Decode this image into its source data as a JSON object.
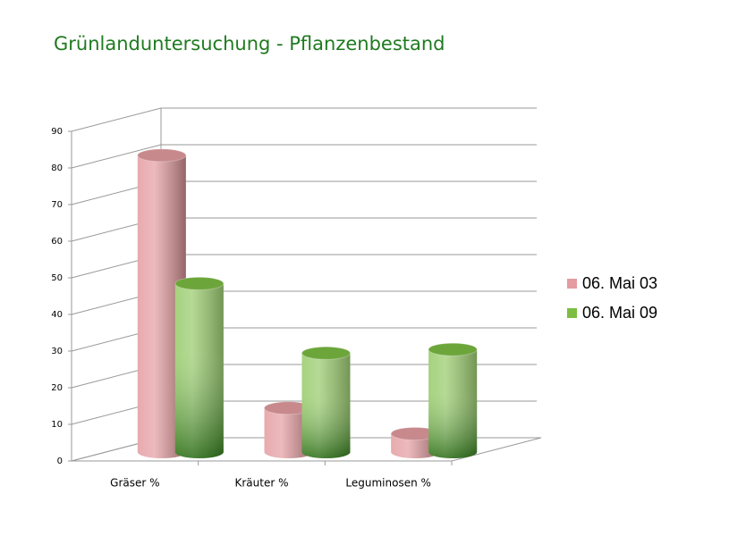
{
  "chart_data": {
    "type": "bar3d",
    "title": "Grünlanduntersuchung - Pflanzenbestand",
    "categories": [
      "Gräser %",
      "Kräuter %",
      "Leguminosen %"
    ],
    "series": [
      {
        "name": "06. Mai 03",
        "color": "#e49ca0",
        "values": [
          81,
          12,
          5
        ]
      },
      {
        "name": "06. Mai 09",
        "color": "#7cbd42",
        "values": [
          46,
          27,
          28
        ]
      }
    ],
    "ylim": [
      0,
      90
    ],
    "yticks": [
      0,
      10,
      20,
      30,
      40,
      50,
      60,
      70,
      80,
      90
    ],
    "grid": true,
    "legend": "right"
  }
}
